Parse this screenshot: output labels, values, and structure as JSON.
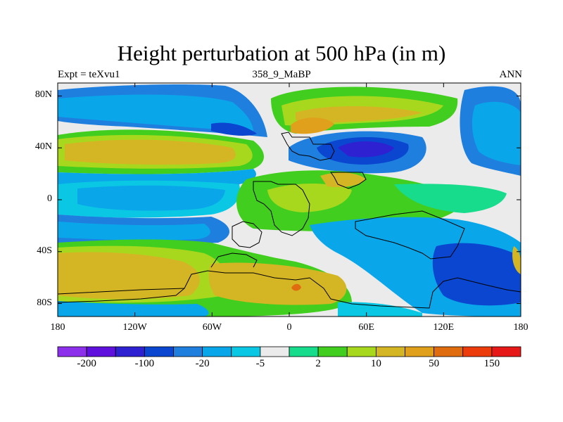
{
  "title": "Height perturbation at 500 hPa (in m)",
  "subtitle_left": "Expt = teXvu1",
  "subtitle_center": "358_9_MaBP",
  "subtitle_right": "ANN",
  "map": {
    "lon_range": [
      -180,
      180
    ],
    "lat_range": [
      -90,
      90
    ],
    "x_ticks": [
      {
        "value": -180,
        "label": "180"
      },
      {
        "value": -120,
        "label": "120W"
      },
      {
        "value": -60,
        "label": "60W"
      },
      {
        "value": 0,
        "label": "0"
      },
      {
        "value": 60,
        "label": "60E"
      },
      {
        "value": 120,
        "label": "120E"
      },
      {
        "value": 180,
        "label": "180"
      }
    ],
    "y_ticks": [
      {
        "value": 80,
        "label": "80N"
      },
      {
        "value": 40,
        "label": "40N"
      },
      {
        "value": 0,
        "label": "0"
      },
      {
        "value": -40,
        "label": "40S"
      },
      {
        "value": -80,
        "label": "80S"
      }
    ]
  },
  "colorbar": {
    "colors": [
      "#8c30eb",
      "#6010dc",
      "#2d21d2",
      "#0a46cf",
      "#1f7fdf",
      "#0aa6ea",
      "#0ac8e4",
      "#ebebeb",
      "#16dc8c",
      "#41ce1e",
      "#a8d81e",
      "#d4b624",
      "#e0a01c",
      "#e06c10",
      "#ec3c0c",
      "#e61818"
    ],
    "labels": [
      {
        "boundary": 1,
        "text": "-200"
      },
      {
        "boundary": 3,
        "text": "-100"
      },
      {
        "boundary": 5,
        "text": "-20"
      },
      {
        "boundary": 7,
        "text": "-5"
      },
      {
        "boundary": 9,
        "text": "2"
      },
      {
        "boundary": 11,
        "text": "10"
      },
      {
        "boundary": 13,
        "text": "50"
      },
      {
        "boundary": 15,
        "text": "150"
      }
    ]
  }
}
